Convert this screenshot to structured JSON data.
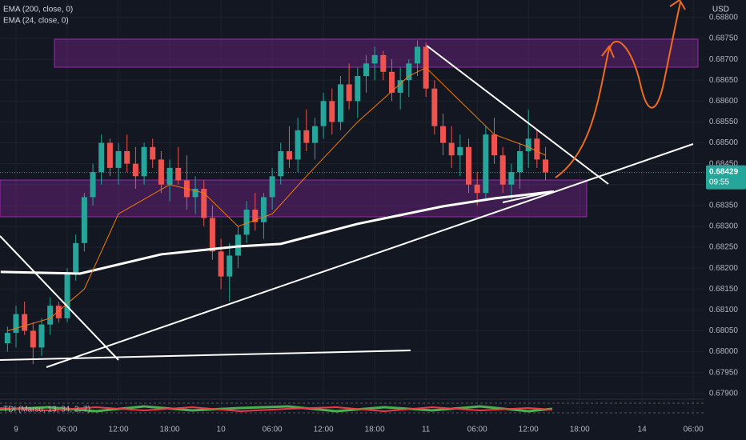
{
  "chart_data": {
    "type": "candlestick",
    "currency": "USD",
    "x": [
      -1,
      0,
      1,
      2,
      3,
      4,
      5,
      6,
      7,
      8,
      9,
      10,
      11,
      12,
      13,
      14,
      15,
      16,
      17,
      18,
      19,
      20,
      21,
      22,
      23,
      24,
      25,
      26,
      27,
      28,
      29,
      30,
      31,
      32,
      33,
      34,
      35,
      36,
      37,
      38,
      39,
      40,
      41,
      42,
      43,
      44,
      45,
      46,
      47,
      48,
      49,
      50,
      51,
      52,
      53,
      54,
      55,
      56,
      57,
      58,
      59,
      60,
      61,
      62
    ],
    "open": [
      0.6802,
      0.68045,
      0.6809,
      0.6805,
      0.6801,
      0.68065,
      0.6811,
      0.6808,
      0.6819,
      0.6826,
      0.6837,
      0.6843,
      0.685,
      0.6844,
      0.6848,
      0.6845,
      0.6842,
      0.6849,
      0.6846,
      0.684,
      0.6844,
      0.6841,
      0.6837,
      0.6839,
      0.6832,
      0.6824,
      0.6818,
      0.6823,
      0.6828,
      0.6834,
      0.6831,
      0.6837,
      0.6842,
      0.6848,
      0.6846,
      0.6853,
      0.685,
      0.6854,
      0.686,
      0.6855,
      0.6864,
      0.686,
      0.6866,
      0.6869,
      0.6871,
      0.6867,
      0.6862,
      0.6865,
      0.6869,
      0.6873,
      0.6863,
      0.6854,
      0.685,
      0.6847,
      0.6849,
      0.684,
      0.6838,
      0.6852,
      0.6847,
      0.684,
      0.6843,
      0.6848,
      0.6851,
      0.6846
    ],
    "high": [
      0.6806,
      0.6811,
      0.6812,
      0.6807,
      0.6808,
      0.6813,
      0.6812,
      0.682,
      0.6828,
      0.6838,
      0.6845,
      0.6852,
      0.6851,
      0.685,
      0.6852,
      0.6849,
      0.685,
      0.6851,
      0.6848,
      0.6846,
      0.6849,
      0.6847,
      0.6842,
      0.6841,
      0.6835,
      0.6827,
      0.6826,
      0.683,
      0.6836,
      0.6838,
      0.6838,
      0.6844,
      0.685,
      0.6854,
      0.6856,
      0.6858,
      0.6856,
      0.6862,
      0.6863,
      0.6866,
      0.6869,
      0.6868,
      0.6871,
      0.6873,
      0.6872,
      0.687,
      0.6868,
      0.687,
      0.68745,
      0.6874,
      0.6865,
      0.6857,
      0.6854,
      0.6852,
      0.6851,
      0.6843,
      0.6854,
      0.6856,
      0.6849,
      0.6845,
      0.685,
      0.6858,
      0.6853,
      0.6849
    ],
    "low": [
      0.68,
      0.6801,
      0.6804,
      0.6797,
      0.6799,
      0.6804,
      0.6807,
      0.6807,
      0.6817,
      0.6824,
      0.6835,
      0.684,
      0.6842,
      0.684,
      0.6843,
      0.6839,
      0.684,
      0.6844,
      0.6838,
      0.6836,
      0.684,
      0.6834,
      0.6833,
      0.683,
      0.6822,
      0.6815,
      0.6812,
      0.682,
      0.6826,
      0.6829,
      0.6827,
      0.6834,
      0.684,
      0.6844,
      0.6843,
      0.6848,
      0.6846,
      0.6851,
      0.6852,
      0.6853,
      0.6858,
      0.6856,
      0.6862,
      0.6865,
      0.6865,
      0.686,
      0.6858,
      0.6861,
      0.6866,
      0.6861,
      0.6852,
      0.6847,
      0.6844,
      0.6842,
      0.6838,
      0.6835,
      0.6836,
      0.6845,
      0.6838,
      0.6836,
      0.6839,
      0.6844,
      0.6844,
      0.6841
    ],
    "close": [
      0.68045,
      0.6809,
      0.6805,
      0.6801,
      0.68065,
      0.6811,
      0.6808,
      0.6819,
      0.6826,
      0.6837,
      0.6843,
      0.685,
      0.6844,
      0.6848,
      0.6845,
      0.6842,
      0.6849,
      0.6846,
      0.684,
      0.6844,
      0.6841,
      0.6837,
      0.6839,
      0.6832,
      0.6824,
      0.6818,
      0.6823,
      0.6828,
      0.6834,
      0.6831,
      0.6837,
      0.6842,
      0.6848,
      0.6846,
      0.6853,
      0.685,
      0.6854,
      0.686,
      0.6855,
      0.6864,
      0.686,
      0.6866,
      0.6869,
      0.6871,
      0.6867,
      0.6862,
      0.6865,
      0.6869,
      0.6873,
      0.6863,
      0.6854,
      0.685,
      0.6847,
      0.6849,
      0.684,
      0.6838,
      0.6852,
      0.6847,
      0.684,
      0.6843,
      0.6848,
      0.6851,
      0.6846,
      0.68429
    ],
    "up_color": "#26a69a",
    "down_color": "#ef5350",
    "series": [
      {
        "name": "EMA (200, close, 0)",
        "color": "#ffffff",
        "x": [
          -1.8,
          7.5,
          17,
          26,
          31,
          40,
          50,
          56,
          62.8
        ],
        "values": [
          0.68191,
          0.68187,
          0.68233,
          0.68252,
          0.68258,
          0.68306,
          0.68348,
          0.68367,
          0.68383
        ]
      },
      {
        "name": "EMA (24, close, 0)",
        "color": "#f57c00",
        "x": [
          -1,
          4,
          8,
          12,
          18,
          22,
          26,
          30,
          34,
          40,
          46,
          48,
          52,
          56,
          60,
          62
        ],
        "values": [
          0.6805,
          0.6808,
          0.6815,
          0.6833,
          0.684,
          0.6838,
          0.683,
          0.6833,
          0.6842,
          0.6855,
          0.6866,
          0.6868,
          0.686,
          0.6852,
          0.6849,
          0.6847
        ]
      }
    ],
    "last_price": {
      "value": 0.68429,
      "label": "0.68429"
    },
    "countdown": "09:55",
    "indicator": "TDI (Marsu, 13, 34, 2, 7)",
    "xlim": [
      -1.875,
      80.6
    ],
    "xticks": [
      {
        "value": 0,
        "label": "9"
      },
      {
        "value": 6,
        "label": "06:00"
      },
      {
        "value": 12,
        "label": "12:00"
      },
      {
        "value": 18,
        "label": "18:00"
      },
      {
        "value": 24,
        "label": "10"
      },
      {
        "value": 30,
        "label": "06:00"
      },
      {
        "value": 36,
        "label": "12:00"
      },
      {
        "value": 42,
        "label": "18:00"
      },
      {
        "value": 48,
        "label": "11"
      },
      {
        "value": 54,
        "label": "06:00"
      },
      {
        "value": 60,
        "label": "12:00"
      },
      {
        "value": 66,
        "label": "18:00"
      },
      {
        "value": 73.3,
        "label": "14"
      },
      {
        "value": 79.3,
        "label": "06:00"
      }
    ],
    "ylim": [
      0.6789,
      0.68842
    ],
    "yticks": [
      {
        "value": 0.679,
        "label": "0.67900"
      },
      {
        "value": 0.6795,
        "label": "0.67950"
      },
      {
        "value": 0.68,
        "label": "0.68000"
      },
      {
        "value": 0.6805,
        "label": "0.68050"
      },
      {
        "value": 0.681,
        "label": "0.68100"
      },
      {
        "value": 0.6815,
        "label": "0.68150"
      },
      {
        "value": 0.682,
        "label": "0.68200"
      },
      {
        "value": 0.6825,
        "label": "0.68250"
      },
      {
        "value": 0.683,
        "label": "0.68300"
      },
      {
        "value": 0.6835,
        "label": "0.68350"
      },
      {
        "value": 0.684,
        "label": "0.68400"
      },
      {
        "value": 0.6845,
        "label": "0.68450"
      },
      {
        "value": 0.685,
        "label": "0.68500"
      },
      {
        "value": 0.6855,
        "label": "0.68550"
      },
      {
        "value": 0.686,
        "label": "0.68600"
      },
      {
        "value": 0.6865,
        "label": "0.68650"
      },
      {
        "value": 0.687,
        "label": "0.68700"
      },
      {
        "value": 0.6875,
        "label": "0.68750"
      },
      {
        "value": 0.688,
        "label": "0.68800"
      }
    ],
    "grid": true
  }
}
